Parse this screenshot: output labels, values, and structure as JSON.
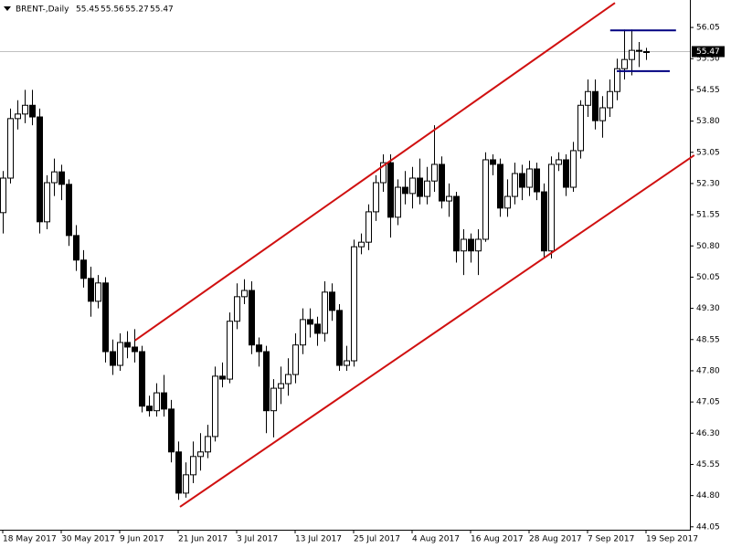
{
  "chart_data": {
    "type": "candlestick",
    "symbol": "BRENT-,Daily",
    "categories": [
      "18 May 2017",
      null,
      null,
      null,
      null,
      null,
      null,
      null,
      "30 May 2017",
      null,
      null,
      null,
      null,
      null,
      null,
      null,
      "9 Jun 2017",
      null,
      null,
      null,
      null,
      null,
      null,
      null,
      "21 Jun 2017",
      null,
      null,
      null,
      null,
      null,
      null,
      null,
      "3 Jul 2017",
      null,
      null,
      null,
      null,
      null,
      null,
      null,
      "13 Jul 2017",
      null,
      null,
      null,
      null,
      null,
      null,
      null,
      "25 Jul 2017",
      null,
      null,
      null,
      null,
      null,
      null,
      null,
      "4 Aug 2017",
      null,
      null,
      null,
      null,
      null,
      null,
      null,
      "16 Aug 2017",
      null,
      null,
      null,
      null,
      null,
      null,
      null,
      "28 Aug 2017",
      null,
      null,
      null,
      null,
      null,
      null,
      null,
      "7 Sep 2017",
      null,
      null,
      null,
      null,
      null,
      null,
      null,
      "19 Sep 2017"
    ],
    "open": [
      51.6,
      52.43,
      53.86,
      53.97,
      54.18,
      53.9,
      51.38,
      52.32,
      52.58,
      52.28,
      51.05,
      50.46,
      50.02,
      49.47,
      49.91,
      48.26,
      47.93,
      48.48,
      48.37,
      48.26,
      46.95,
      46.84,
      47.27,
      46.88,
      45.85,
      44.86,
      45.3,
      45.74,
      45.85,
      46.22,
      47.67,
      47.6,
      48.99,
      49.58,
      49.73,
      48.42,
      48.26,
      46.84,
      47.38,
      47.49,
      47.71,
      48.42,
      49.03,
      48.92,
      48.7,
      49.69,
      49.25,
      47.93,
      48.04,
      50.78,
      50.89,
      51.62,
      52.32,
      52.8,
      51.49,
      52.21,
      52.06,
      52.43,
      51.99,
      52.36,
      52.76,
      51.88,
      51.99,
      50.68,
      50.96,
      50.68,
      50.96,
      52.87,
      52.76,
      51.71,
      51.99,
      52.54,
      52.21,
      52.65,
      52.1,
      50.68,
      52.76,
      52.87,
      52.21,
      53.09,
      54.18,
      54.51,
      53.81,
      54.12,
      54.51,
      55.06,
      55.28,
      55.5,
      55.45
    ],
    "high": [
      52.6,
      54.1,
      54.3,
      54.55,
      54.55,
      54.1,
      52.5,
      52.9,
      52.75,
      52.4,
      51.3,
      50.7,
      50.3,
      50.1,
      50.05,
      48.55,
      48.7,
      48.75,
      48.8,
      48.4,
      47.2,
      47.5,
      47.7,
      47.1,
      46.1,
      45.6,
      46.1,
      46.3,
      46.5,
      47.9,
      48.0,
      49.2,
      49.9,
      50.0,
      49.95,
      48.6,
      48.4,
      47.6,
      47.9,
      48.1,
      48.7,
      49.3,
      49.3,
      49.1,
      49.95,
      49.9,
      49.4,
      48.4,
      50.95,
      51.1,
      51.8,
      52.5,
      53.0,
      53.0,
      52.4,
      52.6,
      52.7,
      52.9,
      52.7,
      53.7,
      52.95,
      52.3,
      52.1,
      51.2,
      51.1,
      51.2,
      53.05,
      53.0,
      52.9,
      52.4,
      52.8,
      52.75,
      52.85,
      52.8,
      52.3,
      52.95,
      53.05,
      53.0,
      53.3,
      54.3,
      54.8,
      54.8,
      54.4,
      54.8,
      55.3,
      56.0,
      56.0,
      55.7,
      55.56
    ],
    "low": [
      51.1,
      52.3,
      53.6,
      53.75,
      53.7,
      51.1,
      51.2,
      52.0,
      51.9,
      50.8,
      50.2,
      49.8,
      49.1,
      49.3,
      48.0,
      47.7,
      47.8,
      48.1,
      48.0,
      46.8,
      46.7,
      46.7,
      46.7,
      45.6,
      44.7,
      44.75,
      45.1,
      45.4,
      45.7,
      46.1,
      47.4,
      47.5,
      48.8,
      49.4,
      48.2,
      47.9,
      46.3,
      46.2,
      47.0,
      47.2,
      47.5,
      48.2,
      48.6,
      48.4,
      48.5,
      49.0,
      47.8,
      47.8,
      47.9,
      50.6,
      50.7,
      51.4,
      52.1,
      51.0,
      51.3,
      51.8,
      51.7,
      51.8,
      51.8,
      52.1,
      51.7,
      51.5,
      50.4,
      50.1,
      50.4,
      50.1,
      50.9,
      52.5,
      51.5,
      51.5,
      51.8,
      51.9,
      52.0,
      51.9,
      50.5,
      50.5,
      52.6,
      52.0,
      52.1,
      52.9,
      53.9,
      53.6,
      53.4,
      53.9,
      54.3,
      54.8,
      54.9,
      55.1,
      55.27
    ],
    "close": [
      52.43,
      53.86,
      53.97,
      54.18,
      53.9,
      51.38,
      52.32,
      52.58,
      52.28,
      51.05,
      50.46,
      50.02,
      49.47,
      49.91,
      48.26,
      47.93,
      48.48,
      48.37,
      48.26,
      46.95,
      46.84,
      47.27,
      46.88,
      45.85,
      44.86,
      45.3,
      45.74,
      45.85,
      46.22,
      47.67,
      47.6,
      48.99,
      49.58,
      49.73,
      48.42,
      48.26,
      46.84,
      47.38,
      47.49,
      47.71,
      48.42,
      49.03,
      48.92,
      48.7,
      49.69,
      49.25,
      47.93,
      48.04,
      50.78,
      50.89,
      51.62,
      52.32,
      52.8,
      51.49,
      52.21,
      52.06,
      52.43,
      51.99,
      52.36,
      52.76,
      51.88,
      51.99,
      50.68,
      50.96,
      50.68,
      50.96,
      52.87,
      52.76,
      51.71,
      51.99,
      52.54,
      52.21,
      52.65,
      52.1,
      50.68,
      52.76,
      52.87,
      52.21,
      53.09,
      54.18,
      54.51,
      53.81,
      54.12,
      54.51,
      55.06,
      55.28,
      55.5,
      55.5,
      55.47
    ],
    "up_color": "#ffffff",
    "down_color": "#000000",
    "outline_color": "#000000",
    "xlim": [
      -0.375,
      94
    ],
    "ylim": [
      43.98,
      56.71
    ],
    "yticks": [
      56.05,
      {
        "value": 55.3,
        "label": "55.30"
      },
      54.55,
      {
        "value": 53.8,
        "label": "53.80"
      },
      53.05,
      {
        "value": 52.3,
        "label": "52.30"
      },
      51.55,
      {
        "value": 50.8,
        "label": "50.80"
      },
      50.05,
      {
        "value": 49.3,
        "label": "49.30"
      },
      48.55,
      {
        "value": 47.8,
        "label": "47.80"
      },
      47.05,
      {
        "value": 46.3,
        "label": "46.30"
      },
      45.55,
      {
        "value": 44.8,
        "label": "44.80"
      },
      44.05
    ],
    "grid": false,
    "trendlines": [
      {
        "x": [
          18.1,
          83.75
        ],
        "y": [
          48.53,
          56.64
        ],
        "color": "#d01010"
      },
      {
        "x": [
          24.25,
          94.6
        ],
        "y": [
          44.53,
          52.98
        ],
        "color": "#d01010"
      },
      {
        "x": [
          83.1,
          92.1
        ],
        "y": [
          55.98,
          55.98
        ],
        "color": "#000080"
      },
      {
        "x": [
          84,
          91.25
        ],
        "y": [
          55.0,
          55.0
        ],
        "color": "#000080"
      }
    ]
  }
}
